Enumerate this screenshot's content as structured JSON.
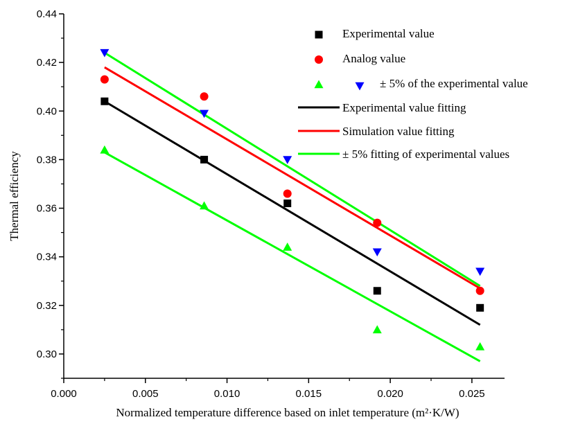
{
  "chart_data": {
    "type": "scatter",
    "xlabel": "Normalized temperature difference based on inlet temperature (m²·K/W)",
    "ylabel": "Thermal efficiency",
    "xlim": [
      0.0,
      0.027
    ],
    "ylim": [
      0.29,
      0.44
    ],
    "x_ticks": [
      "0.000",
      "0.005",
      "0.010",
      "0.015",
      "0.020",
      "0.025"
    ],
    "y_ticks": [
      "0.30",
      "0.32",
      "0.34",
      "0.36",
      "0.38",
      "0.40",
      "0.42",
      "0.44"
    ],
    "grid": false,
    "legend_position": "top-right",
    "series": [
      {
        "name": "Experimental value",
        "kind": "marker",
        "marker": "square",
        "color": "#000000",
        "x": [
          0.0025,
          0.0086,
          0.0137,
          0.0192,
          0.0255
        ],
        "y": [
          0.404,
          0.38,
          0.362,
          0.326,
          0.319
        ]
      },
      {
        "name": "Analog value",
        "kind": "marker",
        "marker": "circle",
        "color": "#ff0000",
        "x": [
          0.0025,
          0.0086,
          0.0137,
          0.0192,
          0.0255
        ],
        "y": [
          0.413,
          0.406,
          0.366,
          0.354,
          0.326
        ]
      },
      {
        "name": "± 5% of the experimental value",
        "kind": "marker",
        "marker": "triangle-up",
        "color": "#00ff00",
        "x": [
          0.0025,
          0.0086,
          0.0137,
          0.0192,
          0.0255
        ],
        "y": [
          0.384,
          0.361,
          0.344,
          0.31,
          0.303
        ]
      },
      {
        "name": "",
        "kind": "marker",
        "marker": "triangle-down",
        "color": "#0000ff",
        "x": [
          0.0025,
          0.0086,
          0.0137,
          0.0192,
          0.0255
        ],
        "y": [
          0.424,
          0.399,
          0.38,
          0.342,
          0.334
        ]
      },
      {
        "name": "Experimental value fitting",
        "kind": "line",
        "color": "#000000",
        "x": [
          0.0025,
          0.0255
        ],
        "y": [
          0.404,
          0.312
        ]
      },
      {
        "name": "Simulation value fitting",
        "kind": "line",
        "color": "#ff0000",
        "x": [
          0.0025,
          0.0255
        ],
        "y": [
          0.418,
          0.327
        ]
      },
      {
        "name": "± 5% fitting of experimental values",
        "kind": "line",
        "color": "#00ff00",
        "x": [
          0.0025,
          0.0255
        ],
        "y": [
          0.424,
          0.328
        ]
      },
      {
        "name": "",
        "kind": "line",
        "color": "#00ff00",
        "x": [
          0.0025,
          0.0255
        ],
        "y": [
          0.383,
          0.297
        ]
      }
    ],
    "legend": [
      {
        "label": "Experimental value",
        "symbols": [
          "square"
        ],
        "colors": [
          "#000000"
        ]
      },
      {
        "label": "Analog value",
        "symbols": [
          "circle"
        ],
        "colors": [
          "#ff0000"
        ]
      },
      {
        "label": "± 5% of the experimental value",
        "symbols": [
          "triangle-up",
          "triangle-down"
        ],
        "colors": [
          "#00ff00",
          "#0000ff"
        ]
      },
      {
        "label": "Experimental value fitting",
        "symbols": [
          "line"
        ],
        "colors": [
          "#000000"
        ]
      },
      {
        "label": "Simulation value fitting",
        "symbols": [
          "line"
        ],
        "colors": [
          "#ff0000"
        ]
      },
      {
        "label": "± 5% fitting of experimental values",
        "symbols": [
          "line"
        ],
        "colors": [
          "#00ff00"
        ]
      }
    ]
  }
}
